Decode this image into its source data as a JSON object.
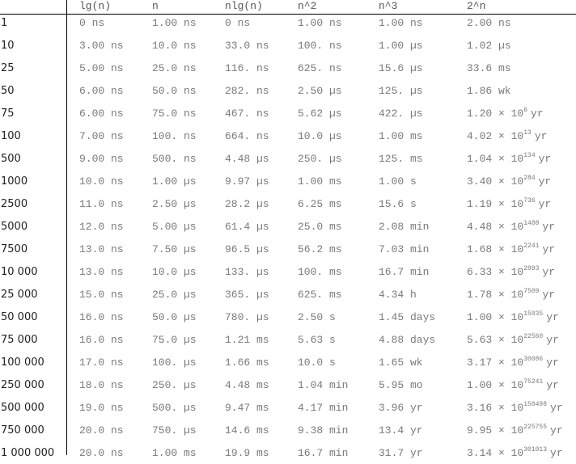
{
  "headers": [
    "lg(n)",
    "n",
    "nlg(n)",
    "n^2",
    "n^3",
    "2^n"
  ],
  "rows": [
    {
      "n": "1",
      "c": [
        "0 ns",
        "1.00 ns",
        "0 ns",
        "1.00 ns",
        "1.00 ns"
      ],
      "e": {
        "m": "2.00 ns",
        "x": "",
        "u": ""
      }
    },
    {
      "n": "10",
      "c": [
        "3.00 ns",
        "10.0 ns",
        "33.0 ns",
        "100. ns",
        "1.00 µs"
      ],
      "e": {
        "m": "1.02 µs",
        "x": "",
        "u": ""
      }
    },
    {
      "n": "25",
      "c": [
        "5.00 ns",
        "25.0 ns",
        "116. ns",
        "625. ns",
        "15.6 µs"
      ],
      "e": {
        "m": "33.6 ms",
        "x": "",
        "u": ""
      }
    },
    {
      "n": "50",
      "c": [
        "6.00 ns",
        "50.0 ns",
        "282. ns",
        "2.50 µs",
        "125. µs"
      ],
      "e": {
        "m": "1.86 wk",
        "x": "",
        "u": ""
      }
    },
    {
      "n": "75",
      "c": [
        "6.00 ns",
        "75.0 ns",
        "467. ns",
        "5.62 µs",
        "422. µs"
      ],
      "e": {
        "m": "1.20 × 10",
        "x": "6",
        "u": "yr"
      }
    },
    {
      "n": "100",
      "c": [
        "7.00 ns",
        "100. ns",
        "664. ns",
        "10.0 µs",
        "1.00 ms"
      ],
      "e": {
        "m": "4.02 × 10",
        "x": "13",
        "u": "yr"
      }
    },
    {
      "n": "500",
      "c": [
        "9.00 ns",
        "500. ns",
        "4.48 µs",
        "250. µs",
        "125. ms"
      ],
      "e": {
        "m": "1.04 × 10",
        "x": "134",
        "u": "yr"
      }
    },
    {
      "n": "1000",
      "c": [
        "10.0 ns",
        "1.00 µs",
        "9.97 µs",
        "1.00 ms",
        "1.00 s"
      ],
      "e": {
        "m": "3.40 × 10",
        "x": "284",
        "u": "yr"
      }
    },
    {
      "n": "2500",
      "c": [
        "11.0 ns",
        "2.50 µs",
        "28.2 µs",
        "6.25 ms",
        "15.6 s"
      ],
      "e": {
        "m": "1.19 × 10",
        "x": "736",
        "u": "yr"
      }
    },
    {
      "n": "5000",
      "c": [
        "12.0 ns",
        "5.00 µs",
        "61.4 µs",
        "25.0 ms",
        "2.08 min"
      ],
      "e": {
        "m": "4.48 × 10",
        "x": "1488",
        "u": "yr"
      }
    },
    {
      "n": "7500",
      "c": [
        "13.0 ns",
        "7.50 µs",
        "96.5 µs",
        "56.2 ms",
        "7.03 min"
      ],
      "e": {
        "m": "1.68 × 10",
        "x": "2241",
        "u": "yr"
      }
    },
    {
      "n": "10 000",
      "c": [
        "13.0 ns",
        "10.0 µs",
        "133. µs",
        "100. ms",
        "16.7 min"
      ],
      "e": {
        "m": "6.33 × 10",
        "x": "2993",
        "u": "yr"
      }
    },
    {
      "n": "25 000",
      "c": [
        "15.0 ns",
        "25.0 µs",
        "365. µs",
        "625. ms",
        "4.34 h"
      ],
      "e": {
        "m": "1.78 × 10",
        "x": "7509",
        "u": "yr"
      }
    },
    {
      "n": "50 000",
      "c": [
        "16.0 ns",
        "50.0 µs",
        "780. µs",
        "2.50 s",
        "1.45 days"
      ],
      "e": {
        "m": "1.00 × 10",
        "x": "15035",
        "u": "yr"
      }
    },
    {
      "n": "75 000",
      "c": [
        "16.0 ns",
        "75.0 µs",
        "1.21 ms",
        "5.63 s",
        "4.88 days"
      ],
      "e": {
        "m": "5.63 × 10",
        "x": "22560",
        "u": "yr"
      }
    },
    {
      "n": "100 000",
      "c": [
        "17.0 ns",
        "100. µs",
        "1.66 ms",
        "10.0 s",
        "1.65 wk"
      ],
      "e": {
        "m": "3.17 × 10",
        "x": "30086",
        "u": "yr"
      }
    },
    {
      "n": "250 000",
      "c": [
        "18.0 ns",
        "250. µs",
        "4.48 ms",
        "1.04 min",
        "5.95 mo"
      ],
      "e": {
        "m": "1.00 × 10",
        "x": "75241",
        "u": "yr"
      }
    },
    {
      "n": "500 000",
      "c": [
        "19.0 ns",
        "500. µs",
        "9.47 ms",
        "4.17 min",
        "3.96 yr"
      ],
      "e": {
        "m": "3.16 × 10",
        "x": "150498",
        "u": "yr"
      }
    },
    {
      "n": "750 000",
      "c": [
        "20.0 ns",
        "750. µs",
        "14.6 ms",
        "9.38 min",
        "13.4 yr"
      ],
      "e": {
        "m": "9.95 × 10",
        "x": "225755",
        "u": "yr"
      }
    },
    {
      "n": "1 000 000",
      "c": [
        "20.0 ns",
        "1.00 ms",
        "19.9 ms",
        "16.7 min",
        "31.7 yr"
      ],
      "e": {
        "m": "3.14 × 10",
        "x": "301013",
        "u": "yr"
      }
    }
  ]
}
